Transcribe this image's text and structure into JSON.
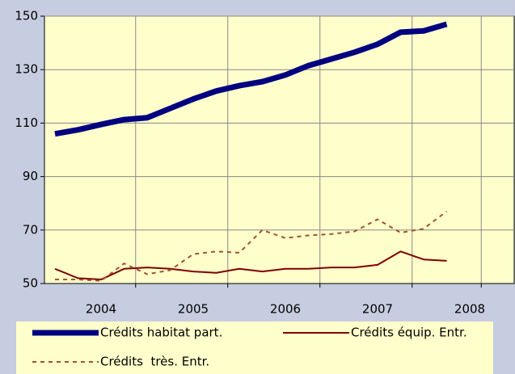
{
  "chart_data": {
    "type": "line",
    "categories": [
      null,
      null,
      "2004",
      null,
      null,
      null,
      "2005",
      null,
      null,
      null,
      "2006",
      null,
      null,
      null,
      "2007",
      null,
      null,
      null,
      "2008"
    ],
    "series": [
      {
        "name": "Crédits habitat part.",
        "color": "#000080",
        "style": "solid",
        "width": 7,
        "values": [
          106,
          107.5,
          109.5,
          111.3,
          112,
          115.5,
          119,
          122,
          124,
          125.5,
          128,
          131.5,
          134,
          136.5,
          139.5,
          144,
          144.5,
          147,
          null
        ]
      },
      {
        "name": "Crédits équip. Entr.",
        "color": "#800000",
        "style": "solid",
        "width": 2,
        "values": [
          55.5,
          52,
          51.5,
          55.5,
          56,
          55.5,
          54.5,
          54,
          55.5,
          54.5,
          55.5,
          55.5,
          56,
          56,
          57,
          62,
          59,
          58.5,
          null
        ]
      },
      {
        "name": "Crédits  très. Entr.",
        "color": "#a0522d",
        "style": "dashed",
        "width": 2,
        "values": [
          51.5,
          51.5,
          51,
          57.5,
          53.5,
          55,
          61,
          62,
          61.5,
          70,
          67,
          68,
          68.5,
          69.5,
          74,
          69,
          70.5,
          77,
          null
        ]
      }
    ],
    "ylim": [
      50,
      150
    ],
    "yticks": [
      50,
      70,
      90,
      110,
      130,
      150
    ],
    "grid": true,
    "legend": "bottom"
  }
}
